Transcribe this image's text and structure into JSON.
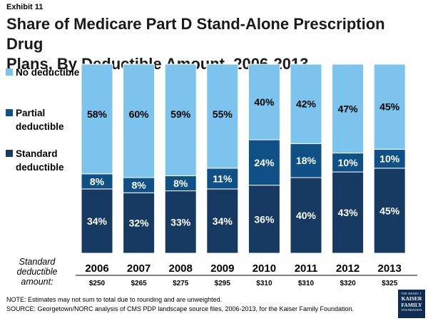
{
  "header": {
    "exhibit": "Exhibit 11",
    "title_line1": "Share of Medicare Part D Stand-Alone Prescription Drug",
    "title_line2": "Plans, By Deductible Amount, 2006-2013"
  },
  "legend": [
    {
      "label": "No deductible",
      "color": "#7cc3ed"
    },
    {
      "label": "Partial deductible",
      "color": "#0f5187"
    },
    {
      "label": "Standard deductible",
      "color": "#173a63"
    }
  ],
  "chart_data": {
    "type": "bar",
    "stacked": true,
    "title": "Share of Medicare Part D Stand-Alone Prescription Drug Plans, By Deductible Amount, 2006-2013",
    "categories": [
      "2006",
      "2007",
      "2008",
      "2009",
      "2010",
      "2011",
      "2012",
      "2013"
    ],
    "series": [
      {
        "name": "Standard deductible",
        "values": [
          34,
          32,
          33,
          34,
          36,
          40,
          43,
          45
        ],
        "color": "#173a63"
      },
      {
        "name": "Partial deductible",
        "values": [
          8,
          8,
          8,
          11,
          24,
          18,
          10,
          10
        ],
        "color": "#0f5187"
      },
      {
        "name": "No deductible",
        "values": [
          58,
          60,
          59,
          55,
          40,
          42,
          47,
          45
        ],
        "color": "#7cc3ed"
      }
    ],
    "ylim": [
      0,
      100
    ],
    "xlabel": "",
    "ylabel": "",
    "row_label": "Standard deductible amount:",
    "deductible_amounts": [
      "$250",
      "$265",
      "$275",
      "$295",
      "$310",
      "$310",
      "$320",
      "$325"
    ]
  },
  "footer": {
    "note": "NOTE: Estimates may not sum to total due to rounding and are unweighted.",
    "source": "SOURCE: Georgetown/NORC analysis of CMS PDP landscape source files, 2006-2013, for the Kaiser Family Foundation."
  },
  "logo": {
    "small": "THE HENRY J.",
    "line1": "KAISER",
    "line2": "FAMILY",
    "line3": "FOUNDATION"
  }
}
